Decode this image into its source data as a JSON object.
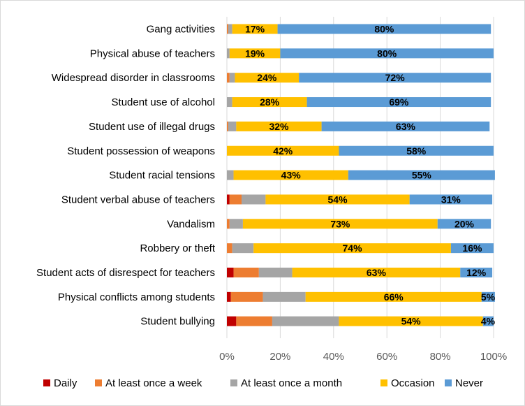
{
  "chart_data": {
    "type": "bar",
    "orientation": "horizontal",
    "stacked": "percent",
    "title": "",
    "xlabel": "",
    "ylabel": "",
    "xlim": [
      0,
      100
    ],
    "x_ticks": [
      "0%",
      "20%",
      "40%",
      "60%",
      "80%",
      "100%"
    ],
    "grid": true,
    "legend_position": "bottom",
    "categories": [
      "Gang activities",
      "Physical abuse of teachers",
      "Widespread disorder in classrooms",
      "Student use of alcohol",
      "Student use of illegal drugs",
      "Student possession of weapons",
      "Student racial tensions",
      "Student verbal abuse of teachers",
      "Vandalism",
      "Robbery or theft",
      "Student acts of disrespect for teachers",
      "Physical conflicts among students",
      "Student bullying"
    ],
    "series": [
      {
        "name": "Daily",
        "color": "#C00000",
        "values": [
          0,
          0,
          0,
          0,
          0,
          0,
          0,
          1,
          0,
          0,
          2.5,
          1.5,
          3.5
        ]
      },
      {
        "name": "At least once a week",
        "color": "#ED7D31",
        "values": [
          0.5,
          0,
          1,
          0,
          0.5,
          0,
          0,
          4.5,
          1,
          2,
          9.5,
          12,
          13.5
        ]
      },
      {
        "name": "At least once a month",
        "color": "#A5A5A5",
        "values": [
          1.5,
          1,
          2,
          2,
          3,
          0,
          2.5,
          9,
          5,
          8,
          12.5,
          16,
          25
        ]
      },
      {
        "name": "Occasion",
        "color": "#FFC000",
        "values": [
          17,
          19,
          24,
          28,
          32,
          42,
          43,
          54,
          73,
          74,
          63,
          66,
          54
        ]
      },
      {
        "name": "Never",
        "color": "#5B9BD5",
        "values": [
          80,
          80,
          72,
          69,
          63,
          58,
          55,
          31,
          20,
          16,
          12,
          5,
          4
        ]
      }
    ],
    "data_labels": [
      {
        "occasion": "17%",
        "never": "80%"
      },
      {
        "occasion": "19%",
        "never": "80%"
      },
      {
        "occasion": "24%",
        "never": "72%"
      },
      {
        "occasion": "28%",
        "never": "69%"
      },
      {
        "occasion": "32%",
        "never": "63%"
      },
      {
        "occasion": "42%",
        "never": "58%"
      },
      {
        "occasion": "43%",
        "never": "55%"
      },
      {
        "occasion": "54%",
        "never": "31%"
      },
      {
        "occasion": "73%",
        "never": "20%"
      },
      {
        "occasion": "74%",
        "never": "16%"
      },
      {
        "occasion": "63%",
        "never": "12%"
      },
      {
        "occasion": "66%",
        "never": "5%"
      },
      {
        "occasion": "54%",
        "never": "4%"
      }
    ]
  }
}
